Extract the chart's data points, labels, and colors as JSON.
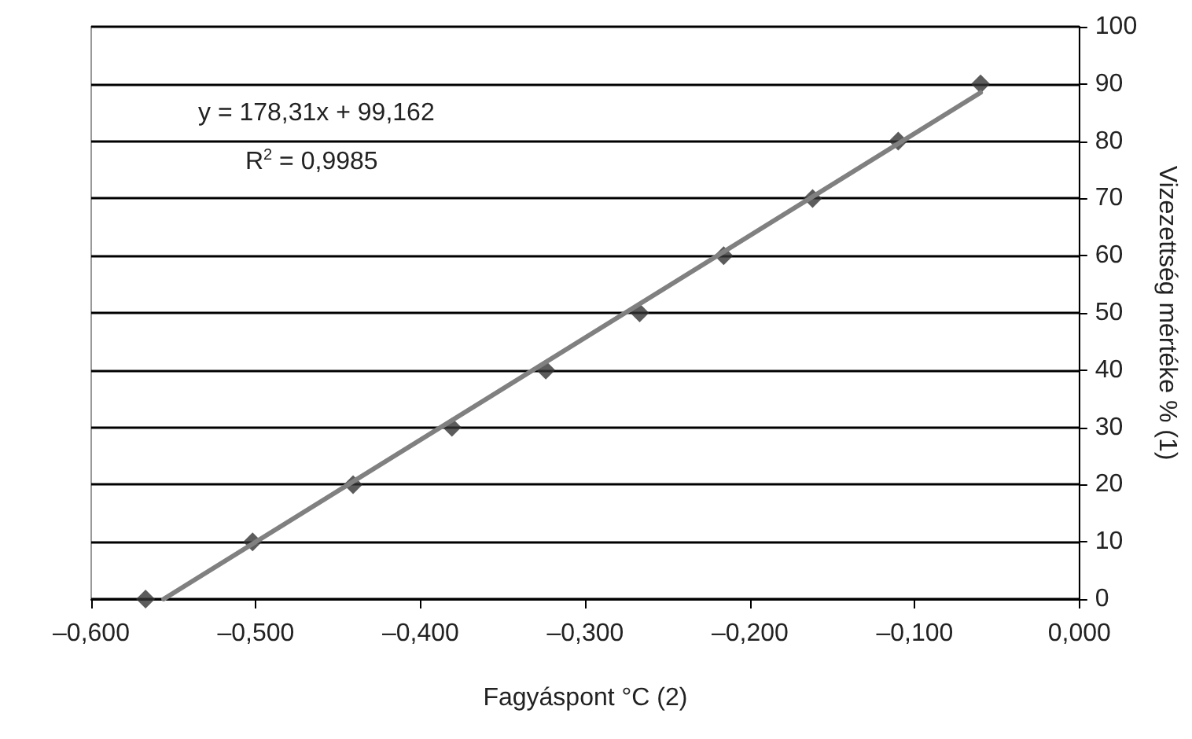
{
  "chart_data": {
    "type": "scatter",
    "xlabel": "Fagyáspont °C (2)",
    "ylabel": "Vizezettség mértéke % (1)",
    "annotations": [
      "y = 178,31x + 99,162",
      "R$^{2}$ = 0,9985"
    ],
    "series": [
      {
        "color": "#333333",
        "marker": "diamond",
        "x": [
          -0.567,
          -0.502,
          -0.441,
          -0.381,
          -0.324,
          -0.267,
          -0.216,
          -0.162,
          -0.11,
          -0.06
        ],
        "values": [
          0,
          10,
          20,
          30,
          40,
          50,
          60,
          70,
          80,
          90
        ]
      },
      {
        "type": "line",
        "color": "#808080",
        "marker": "none",
        "x": [
          -0.556,
          -0.06
        ],
        "values": [
          0,
          88.5
        ]
      }
    ],
    "xlim": [
      -0.6,
      0
    ],
    "xticks": [
      {
        "value": -0.6,
        "label": "–0,600"
      },
      {
        "value": -0.5,
        "label": "–0,500"
      },
      {
        "value": -0.4,
        "label": "–0,400"
      },
      {
        "value": -0.3,
        "label": "–0,300"
      },
      {
        "value": -0.2,
        "label": "–0,200"
      },
      {
        "value": -0.1,
        "label": "–0,100"
      },
      {
        "value": 0,
        "label": "0,000"
      }
    ],
    "ylim": [
      0,
      100
    ],
    "yticks": [
      0,
      10,
      20,
      30,
      40,
      50,
      60,
      70,
      80,
      90,
      100
    ],
    "grid": "y"
  }
}
